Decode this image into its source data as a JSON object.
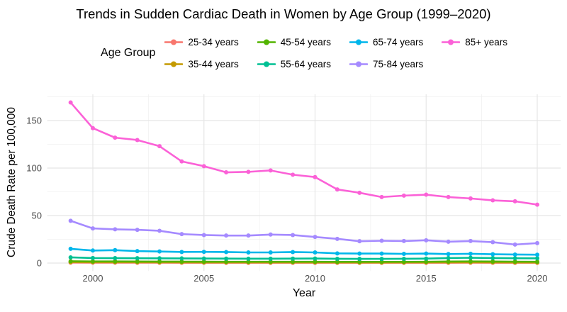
{
  "title": "Trends in Sudden Cardiac Death in Women by Age Group (1999–2020)",
  "legend": {
    "title": "Age Group"
  },
  "chart_data": {
    "type": "line",
    "title": "Trends in Sudden Cardiac Death in Women by Age Group (1999–2020)",
    "xlabel": "Year",
    "ylabel": "Crude Death Rate per 100,000",
    "x": [
      1999,
      2000,
      2001,
      2002,
      2003,
      2004,
      2005,
      2006,
      2007,
      2008,
      2009,
      2010,
      2011,
      2012,
      2013,
      2014,
      2015,
      2016,
      2017,
      2018,
      2019,
      2020
    ],
    "xticks": [
      2000,
      2005,
      2010,
      2015,
      2020
    ],
    "xticks_minor": [
      2002.5,
      2007.5,
      2012.5,
      2017.5
    ],
    "yticks": [
      0,
      50,
      100,
      150
    ],
    "yticks_minor": [
      25,
      75,
      125,
      175
    ],
    "xlim": [
      1997.95,
      2021.05
    ],
    "ylim": [
      -8.5,
      177.5
    ],
    "grid": true,
    "legend_position": "top",
    "marker": "circle",
    "series": [
      {
        "name": "25-34 years",
        "color": "#F8766D",
        "values": [
          0.5,
          0.45,
          0.45,
          0.4,
          0.4,
          0.35,
          0.35,
          0.3,
          0.3,
          0.3,
          0.3,
          0.3,
          0.3,
          0.3,
          0.3,
          0.3,
          0.3,
          0.35,
          0.4,
          0.35,
          0.3,
          0.3
        ]
      },
      {
        "name": "35-44 years",
        "color": "#C49A00",
        "values": [
          1.0,
          0.9,
          0.9,
          0.85,
          0.8,
          0.75,
          0.7,
          0.7,
          0.7,
          0.7,
          0.7,
          0.7,
          0.65,
          0.6,
          0.6,
          0.65,
          0.7,
          0.75,
          0.8,
          0.75,
          0.65,
          0.6
        ]
      },
      {
        "name": "45-54 years",
        "color": "#53B400",
        "values": [
          1.9,
          1.7,
          1.7,
          1.6,
          1.55,
          1.5,
          1.45,
          1.4,
          1.4,
          1.4,
          1.4,
          1.4,
          1.3,
          1.3,
          1.3,
          1.3,
          1.4,
          1.6,
          1.7,
          1.6,
          1.5,
          1.4
        ]
      },
      {
        "name": "55-64 years",
        "color": "#00C094",
        "values": [
          6.0,
          5.3,
          5.2,
          5.1,
          5.0,
          4.9,
          4.8,
          4.7,
          4.6,
          4.6,
          4.7,
          4.8,
          4.5,
          4.4,
          4.4,
          4.5,
          4.7,
          5.3,
          5.6,
          5.3,
          5.1,
          5.0
        ]
      },
      {
        "name": "65-74 years",
        "color": "#00B6EB",
        "values": [
          15.0,
          13.2,
          13.6,
          12.6,
          12.2,
          11.7,
          11.8,
          11.6,
          11.2,
          11.2,
          11.6,
          11.2,
          10.2,
          10.0,
          10.0,
          9.7,
          10.0,
          9.5,
          9.8,
          9.3,
          9.0,
          8.8
        ]
      },
      {
        "name": "75-84 years",
        "color": "#A58AFF",
        "values": [
          44.5,
          36.5,
          35.5,
          35.0,
          34.0,
          30.5,
          29.5,
          29.0,
          29.0,
          30.0,
          29.5,
          27.5,
          25.5,
          23.0,
          23.5,
          23.2,
          24.0,
          22.5,
          23.2,
          22.0,
          19.5,
          21.0
        ]
      },
      {
        "name": "85+ years",
        "color": "#FB61D7",
        "values": [
          169,
          142,
          132,
          129.5,
          123,
          107,
          102,
          95.5,
          96,
          97.5,
          93,
          90.5,
          77.5,
          74,
          69.5,
          71,
          72,
          69.5,
          68,
          66,
          65,
          61.5
        ]
      }
    ]
  }
}
